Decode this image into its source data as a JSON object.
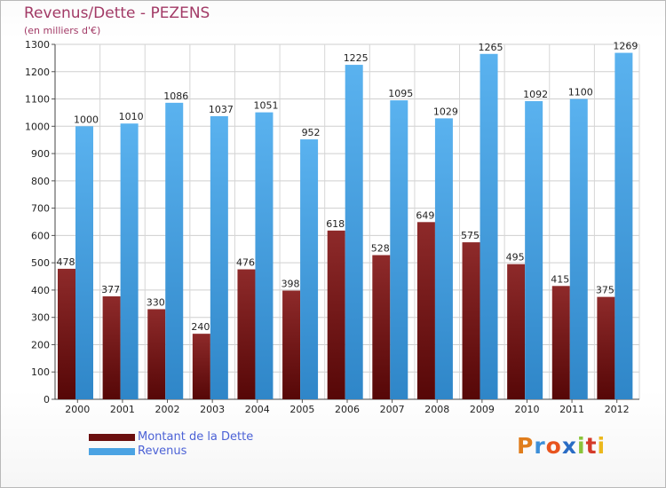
{
  "header": {
    "title": "Revenus/Dette - PEZENS",
    "subtitle": "(en milliers d'€)"
  },
  "chart_data": {
    "type": "bar",
    "title": "Revenus/Dette - PEZENS",
    "ylabel": "(en milliers d'€)",
    "xlabel": "",
    "ylim": [
      0,
      1300
    ],
    "yticks": [
      0,
      100,
      200,
      300,
      400,
      500,
      600,
      700,
      800,
      900,
      1000,
      1100,
      1200,
      1300
    ],
    "grid": true,
    "categories": [
      "2000",
      "2001",
      "2002",
      "2003",
      "2004",
      "2005",
      "2006",
      "2007",
      "2008",
      "2009",
      "2010",
      "2011",
      "2012"
    ],
    "series": [
      {
        "name": "Montant de la Dette",
        "color": "#7a1c1c",
        "values": [
          478,
          377,
          330,
          240,
          476,
          398,
          618,
          528,
          649,
          575,
          495,
          415,
          375
        ]
      },
      {
        "name": "Revenus",
        "color": "#4ba3e3",
        "values": [
          1000,
          1010,
          1086,
          1037,
          1051,
          952,
          1225,
          1095,
          1029,
          1265,
          1092,
          1100,
          1269
        ]
      }
    ]
  },
  "legend": {
    "items": [
      {
        "label": "Montant de la Dette",
        "color": "#6b0f0f"
      },
      {
        "label": "Revenus",
        "color": "#4ba3e3"
      }
    ]
  },
  "logo": {
    "text": "Proxiti",
    "colors": [
      "#e07d1c",
      "#3d8fd8",
      "#e8541e",
      "#2a6cc4",
      "#8ac43a",
      "#d43a2a",
      "#ecb81c"
    ]
  }
}
